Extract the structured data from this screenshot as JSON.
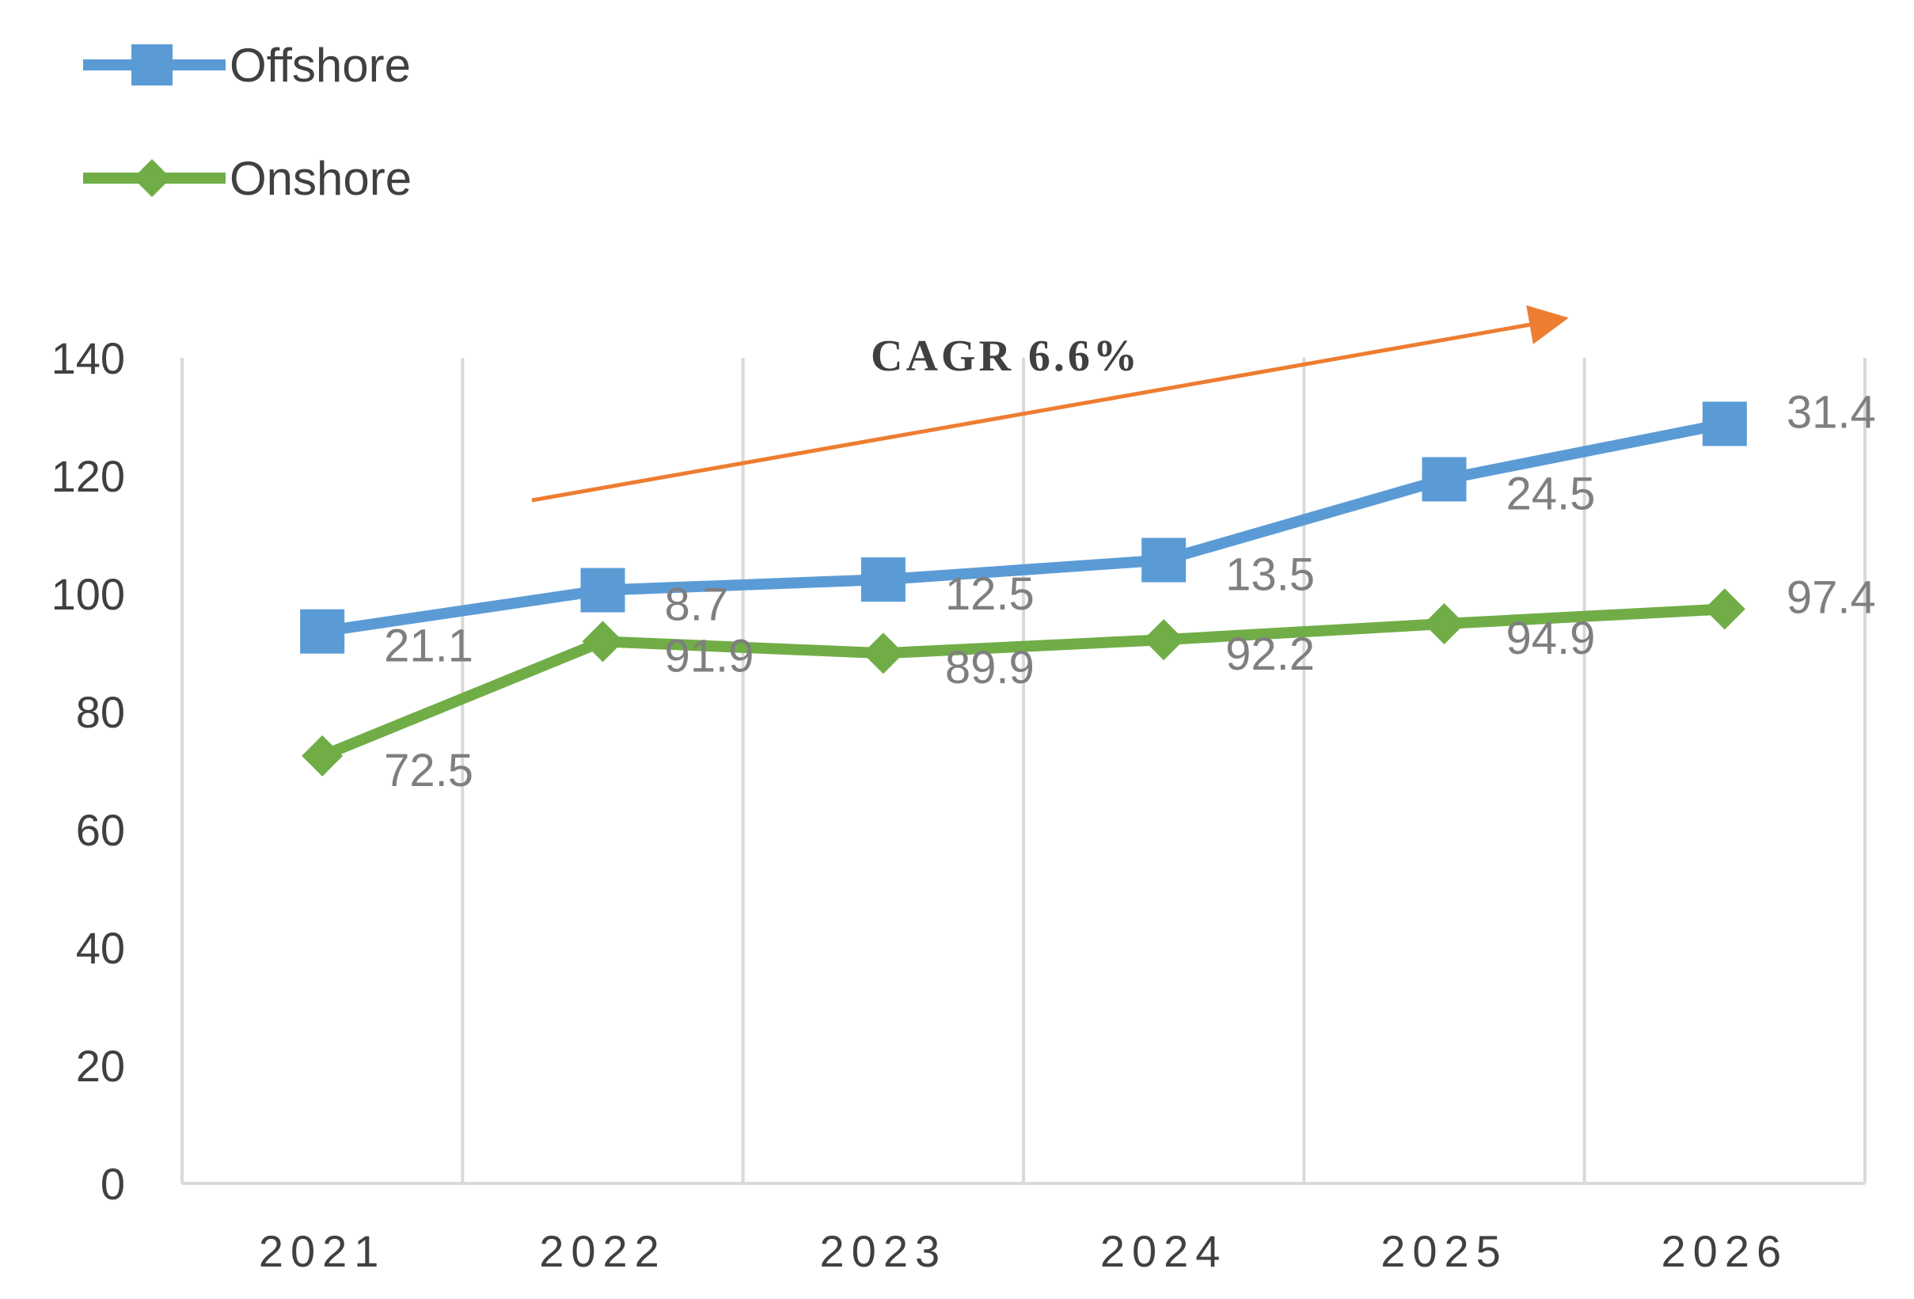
{
  "chart_data": {
    "type": "line",
    "categories": [
      "2021",
      "2022",
      "2023",
      "2024",
      "2025",
      "2026"
    ],
    "series": [
      {
        "name": "Offshore",
        "color": "#5b9bd5",
        "marker": "square",
        "values": [
          93.6,
          100.6,
          102.4,
          105.7,
          119.4,
          128.8
        ],
        "data_labels": [
          "21.1",
          "8.7",
          "12.5",
          "13.5",
          "24.5",
          "31.4"
        ]
      },
      {
        "name": "Onshore",
        "color": "#70ad47",
        "marker": "diamond",
        "values": [
          72.5,
          91.9,
          89.9,
          92.2,
          94.9,
          97.4
        ],
        "data_labels": [
          "72.5",
          "91.9",
          "89.9",
          "92.2",
          "94.9",
          "97.4"
        ]
      }
    ],
    "ylim": [
      0,
      140
    ],
    "yticks": [
      "0",
      "20",
      "40",
      "60",
      "80",
      "100",
      "120",
      "140"
    ],
    "grid": "vertical",
    "legend": "top-left",
    "annotation": {
      "text": "CAGR 6.6%",
      "arrow_color": "#ed7d31"
    },
    "title": "",
    "xlabel": "",
    "ylabel": ""
  }
}
